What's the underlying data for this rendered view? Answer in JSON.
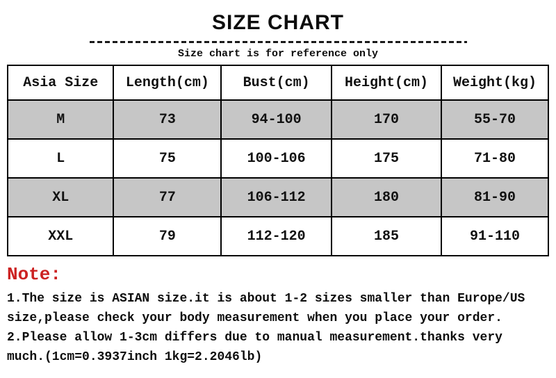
{
  "header": {
    "title": "SIZE CHART",
    "subtitle": "Size chart is for reference only"
  },
  "table": {
    "columns": [
      "Asia Size",
      "Length(cm)",
      "Bust(cm)",
      "Height(cm)",
      "Weight(kg)"
    ],
    "rows": [
      [
        "M",
        "73",
        "94-100",
        "170",
        "55-70"
      ],
      [
        "L",
        "75",
        "100-106",
        "175",
        "71-80"
      ],
      [
        "XL",
        "77",
        "106-112",
        "180",
        "81-90"
      ],
      [
        "XXL",
        "79",
        "112-120",
        "185",
        "91-110"
      ]
    ]
  },
  "notes": {
    "label": "Note:",
    "lines": [
      "1.The size is ASIAN size.it is about 1-2 sizes smaller than Europe/US",
      "size,please check your body measurement when you place your order.",
      "2.Please allow 1-3cm differs due to manual measurement.thanks very",
      "much.(1cm=0.3937inch 1kg=2.2046lb)"
    ]
  },
  "colors": {
    "row_alt_gray": "#c6c6c6",
    "note_red": "#cc2222",
    "border_black": "#000000"
  }
}
